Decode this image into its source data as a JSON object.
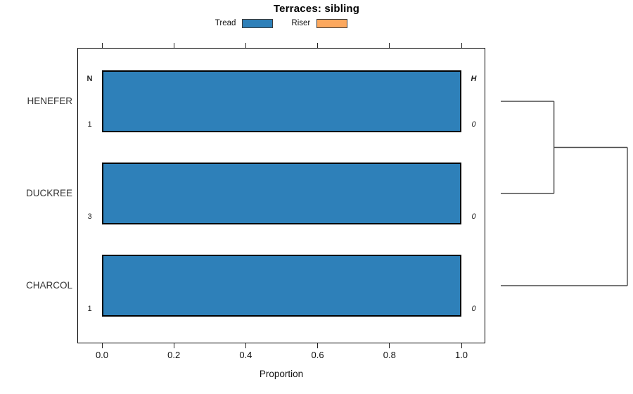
{
  "chart_data": {
    "type": "bar",
    "orientation": "horizontal",
    "title": "Terraces: sibling",
    "xlabel": "Proportion",
    "xlim": [
      0,
      1
    ],
    "xtick_values": [
      0,
      0.2,
      0.4,
      0.6,
      0.8,
      1.0
    ],
    "xtick_labels": [
      "0.0",
      "0.2",
      "0.4",
      "0.6",
      "0.8",
      "1.0"
    ],
    "grid": false,
    "legend_position": "top-center",
    "categories": [
      "HENEFER",
      "DUCKREE",
      "CHARCOL"
    ],
    "series": [
      {
        "name": "Tread",
        "color": "#2E80B9",
        "values": [
          1.0,
          1.0,
          1.0
        ]
      },
      {
        "name": "Riser",
        "color": "#FCA85E",
        "values": [
          0.0,
          0.0,
          0.0
        ]
      }
    ],
    "left_annotation": {
      "header": "N",
      "values": [
        "1",
        "3",
        "1"
      ]
    },
    "right_annotation": {
      "header": "H",
      "values": [
        "0",
        "0",
        "0"
      ]
    },
    "dendrogram": {
      "side": "right",
      "leaves": [
        "HENEFER",
        "DUCKREE",
        "CHARCOL"
      ],
      "merges": [
        {
          "a": "leaf0",
          "b": "leaf1",
          "height": 0.42
        },
        {
          "a": "merge0",
          "b": "leaf2",
          "height": 1.0
        }
      ]
    }
  }
}
